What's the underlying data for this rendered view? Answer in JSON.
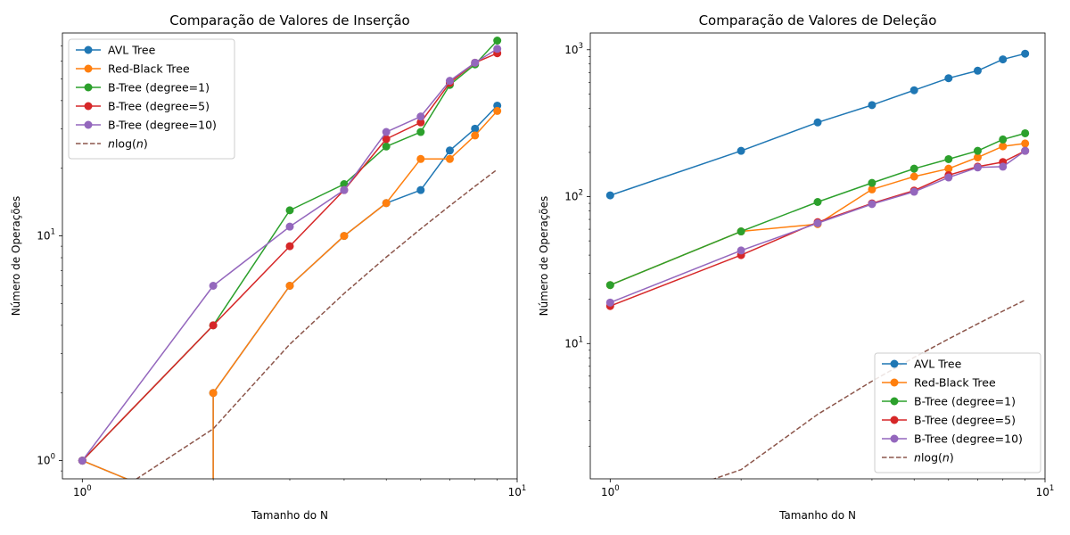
{
  "colors": {
    "avl": "#1f77b4",
    "rb": "#ff7f0e",
    "b1": "#2ca02c",
    "b5": "#d62728",
    "b10": "#9467bd",
    "nlogn": "#8c564b"
  },
  "chart_data": [
    {
      "type": "line",
      "title": "Comparação de Valores de Inserção",
      "xlabel": "Tamanho do N",
      "ylabel": "Número de Operações",
      "xscale": "log",
      "yscale": "log",
      "xlim": [
        0.9,
        10
      ],
      "ylim": [
        0.83,
        80
      ],
      "x_ticks": [
        {
          "value": 1,
          "base": "10",
          "exp": "0"
        },
        {
          "value": 10,
          "base": "10",
          "exp": "1"
        }
      ],
      "y_ticks": [
        {
          "value": 1,
          "base": "10",
          "exp": "0"
        },
        {
          "value": 10,
          "base": "10",
          "exp": "1"
        }
      ],
      "legend_position": "upper-left",
      "x": [
        1,
        2,
        3,
        4,
        5,
        6,
        7,
        8,
        9
      ],
      "series": [
        {
          "name": "AVL Tree",
          "color_key": "avl",
          "style": "line-marker",
          "x": [
            1,
            2,
            2,
            3,
            4,
            5,
            6,
            7,
            8,
            9
          ],
          "values": [
            1,
            0,
            2,
            6,
            10,
            14,
            16,
            24,
            30,
            38
          ]
        },
        {
          "name": "Red-Black Tree",
          "color_key": "rb",
          "style": "line-marker",
          "x": [
            1,
            2,
            2,
            3,
            4,
            5,
            6,
            7,
            8,
            9
          ],
          "values": [
            1,
            0,
            2,
            6,
            10,
            14,
            22,
            22,
            28,
            36
          ]
        },
        {
          "name": "B-Tree (degree=1)",
          "color_key": "b1",
          "style": "line-marker",
          "x": [
            1,
            2,
            3,
            4,
            5,
            6,
            7,
            8,
            9
          ],
          "values": [
            1,
            4,
            13,
            17,
            25,
            29,
            47,
            58,
            74
          ]
        },
        {
          "name": "B-Tree (degree=5)",
          "color_key": "b5",
          "style": "line-marker",
          "x": [
            1,
            2,
            3,
            4,
            5,
            6,
            7,
            8,
            9
          ],
          "values": [
            1,
            4,
            9,
            16,
            27,
            32,
            48,
            59,
            65
          ]
        },
        {
          "name": "B-Tree (degree=10)",
          "color_key": "b10",
          "style": "line-marker",
          "x": [
            1,
            2,
            3,
            4,
            5,
            6,
            7,
            8,
            9
          ],
          "values": [
            1,
            6,
            11,
            16,
            29,
            34,
            49,
            59,
            68
          ]
        },
        {
          "name": "$n\\log(n)$",
          "color_key": "nlogn",
          "style": "dashed",
          "x": [
            1,
            2,
            3,
            4,
            5,
            6,
            7,
            8,
            9
          ],
          "values": [
            0,
            1.386,
            3.296,
            5.545,
            8.047,
            10.751,
            13.621,
            16.636,
            19.775
          ]
        }
      ]
    },
    {
      "type": "line",
      "title": "Comparação de Valores de Deleção",
      "xlabel": "Tamanho do N",
      "ylabel": "Número de Operações",
      "xscale": "log",
      "yscale": "log",
      "xlim": [
        0.9,
        10
      ],
      "ylim": [
        1.2,
        1300
      ],
      "x_ticks": [
        {
          "value": 1,
          "base": "10",
          "exp": "0"
        },
        {
          "value": 10,
          "base": "10",
          "exp": "1"
        }
      ],
      "y_ticks": [
        {
          "value": 10,
          "base": "10",
          "exp": "1"
        },
        {
          "value": 100,
          "base": "10",
          "exp": "2"
        },
        {
          "value": 1000,
          "base": "10",
          "exp": "3"
        }
      ],
      "legend_position": "lower-right",
      "x": [
        1,
        2,
        3,
        4,
        5,
        6,
        7,
        8,
        9
      ],
      "series": [
        {
          "name": "AVL Tree",
          "color_key": "avl",
          "style": "line-marker",
          "x": [
            1,
            2,
            3,
            4,
            5,
            6,
            7,
            8,
            9
          ],
          "values": [
            102,
            205,
            320,
            420,
            530,
            640,
            720,
            860,
            940
          ]
        },
        {
          "name": "Red-Black Tree",
          "color_key": "rb",
          "style": "line-marker",
          "x": [
            1,
            2,
            3,
            4,
            5,
            6,
            7,
            8,
            9
          ],
          "values": [
            25,
            58,
            65,
            112,
            137,
            155,
            185,
            220,
            230
          ]
        },
        {
          "name": "B-Tree (degree=1)",
          "color_key": "b1",
          "style": "line-marker",
          "x": [
            1,
            2,
            3,
            4,
            5,
            6,
            7,
            8,
            9
          ],
          "values": [
            25,
            58,
            92,
            124,
            155,
            180,
            205,
            245,
            270
          ]
        },
        {
          "name": "B-Tree (degree=5)",
          "color_key": "b5",
          "style": "line-marker",
          "x": [
            1,
            2,
            3,
            4,
            5,
            6,
            7,
            8,
            9
          ],
          "values": [
            18,
            40,
            67,
            90,
            110,
            140,
            160,
            172,
            205
          ]
        },
        {
          "name": "B-Tree (degree=10)",
          "color_key": "b10",
          "style": "line-marker",
          "x": [
            1,
            2,
            3,
            4,
            5,
            6,
            7,
            8,
            9
          ],
          "values": [
            19,
            43,
            66,
            89,
            108,
            135,
            158,
            160,
            205
          ]
        },
        {
          "name": "$n\\log(n)$",
          "color_key": "nlogn",
          "style": "dashed",
          "x": [
            1,
            2,
            3,
            4,
            5,
            6,
            7,
            8,
            9
          ],
          "values": [
            0,
            1.386,
            3.296,
            5.545,
            8.047,
            10.751,
            13.621,
            16.636,
            19.775
          ]
        }
      ]
    }
  ]
}
